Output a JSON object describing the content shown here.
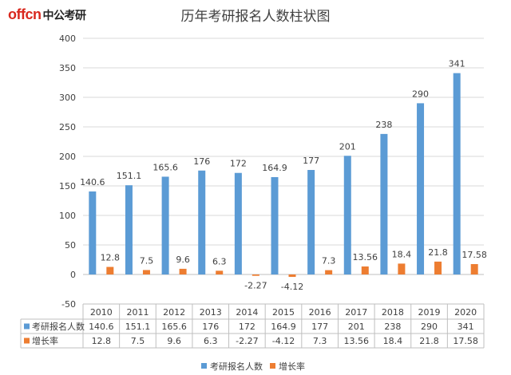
{
  "logo": {
    "brand": "offcn",
    "name": "中公考研"
  },
  "chart_data": {
    "type": "bar",
    "title": "历年考研报名人数柱状图",
    "categories": [
      "2010",
      "2011",
      "2012",
      "2013",
      "2014",
      "2015",
      "2016",
      "2017",
      "2018",
      "2019",
      "2020"
    ],
    "series": [
      {
        "name": "考研报名人数",
        "color": "#5b9bd5",
        "values": [
          140.6,
          151.1,
          165.6,
          176,
          172,
          164.9,
          177,
          201,
          238,
          290,
          341
        ],
        "labels": [
          "140.6",
          "151.1",
          "165.6",
          "176",
          "172",
          "164.9",
          "177",
          "201",
          "238",
          "290",
          "341"
        ]
      },
      {
        "name": "增长率",
        "color": "#ed7d31",
        "values": [
          12.8,
          7.5,
          9.6,
          6.3,
          -2.27,
          -4.12,
          7.3,
          13.56,
          18.4,
          21.8,
          17.58
        ],
        "labels": [
          "12.8",
          "7.5",
          "9.6",
          "6.3",
          "-2.27",
          "-4.12",
          "7.3",
          "13.56",
          "18.4",
          "21.8",
          "17.58"
        ]
      }
    ],
    "ylim": [
      -50,
      400
    ],
    "yticks": [
      -50,
      0,
      50,
      100,
      150,
      200,
      250,
      300,
      350,
      400
    ],
    "grid": true,
    "data_table": true,
    "legend": "bottom"
  }
}
